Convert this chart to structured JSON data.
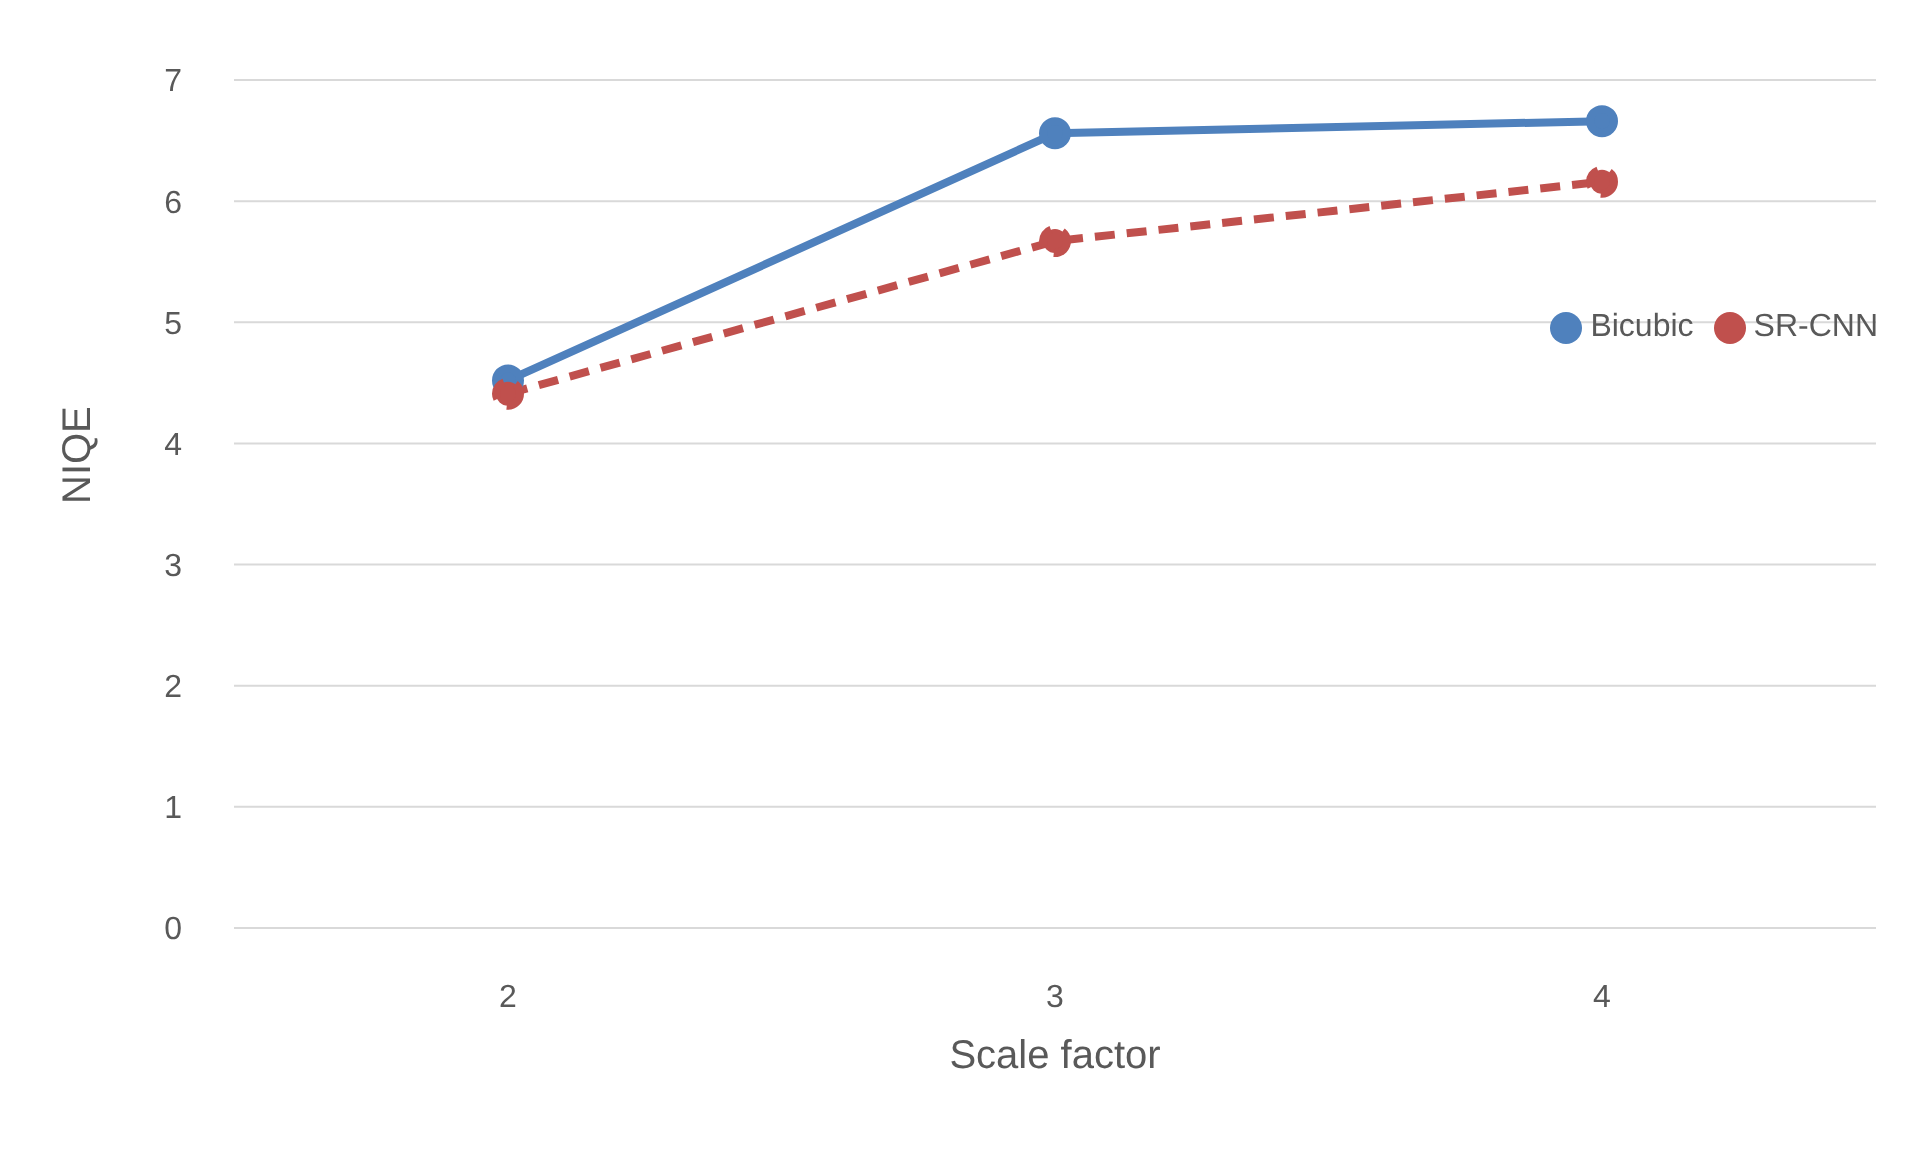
{
  "chart_data": {
    "type": "line",
    "xlabel": "Scale factor",
    "ylabel": "NIQE",
    "categories": [
      "2",
      "3",
      "4"
    ],
    "series": [
      {
        "name": "Bicubic",
        "color": "#4f81bd",
        "values": [
          4.52,
          6.56,
          6.66
        ],
        "line_style": "solid"
      },
      {
        "name": "SR-CNN",
        "color": "#c0504d",
        "values": [
          4.41,
          5.67,
          6.16
        ],
        "line_style": "dashed"
      }
    ],
    "ylim": [
      0,
      7
    ],
    "yticks": [
      0,
      1,
      2,
      3,
      4,
      5,
      6,
      7
    ],
    "grid": "y",
    "legend": "right",
    "marker": "circle"
  }
}
